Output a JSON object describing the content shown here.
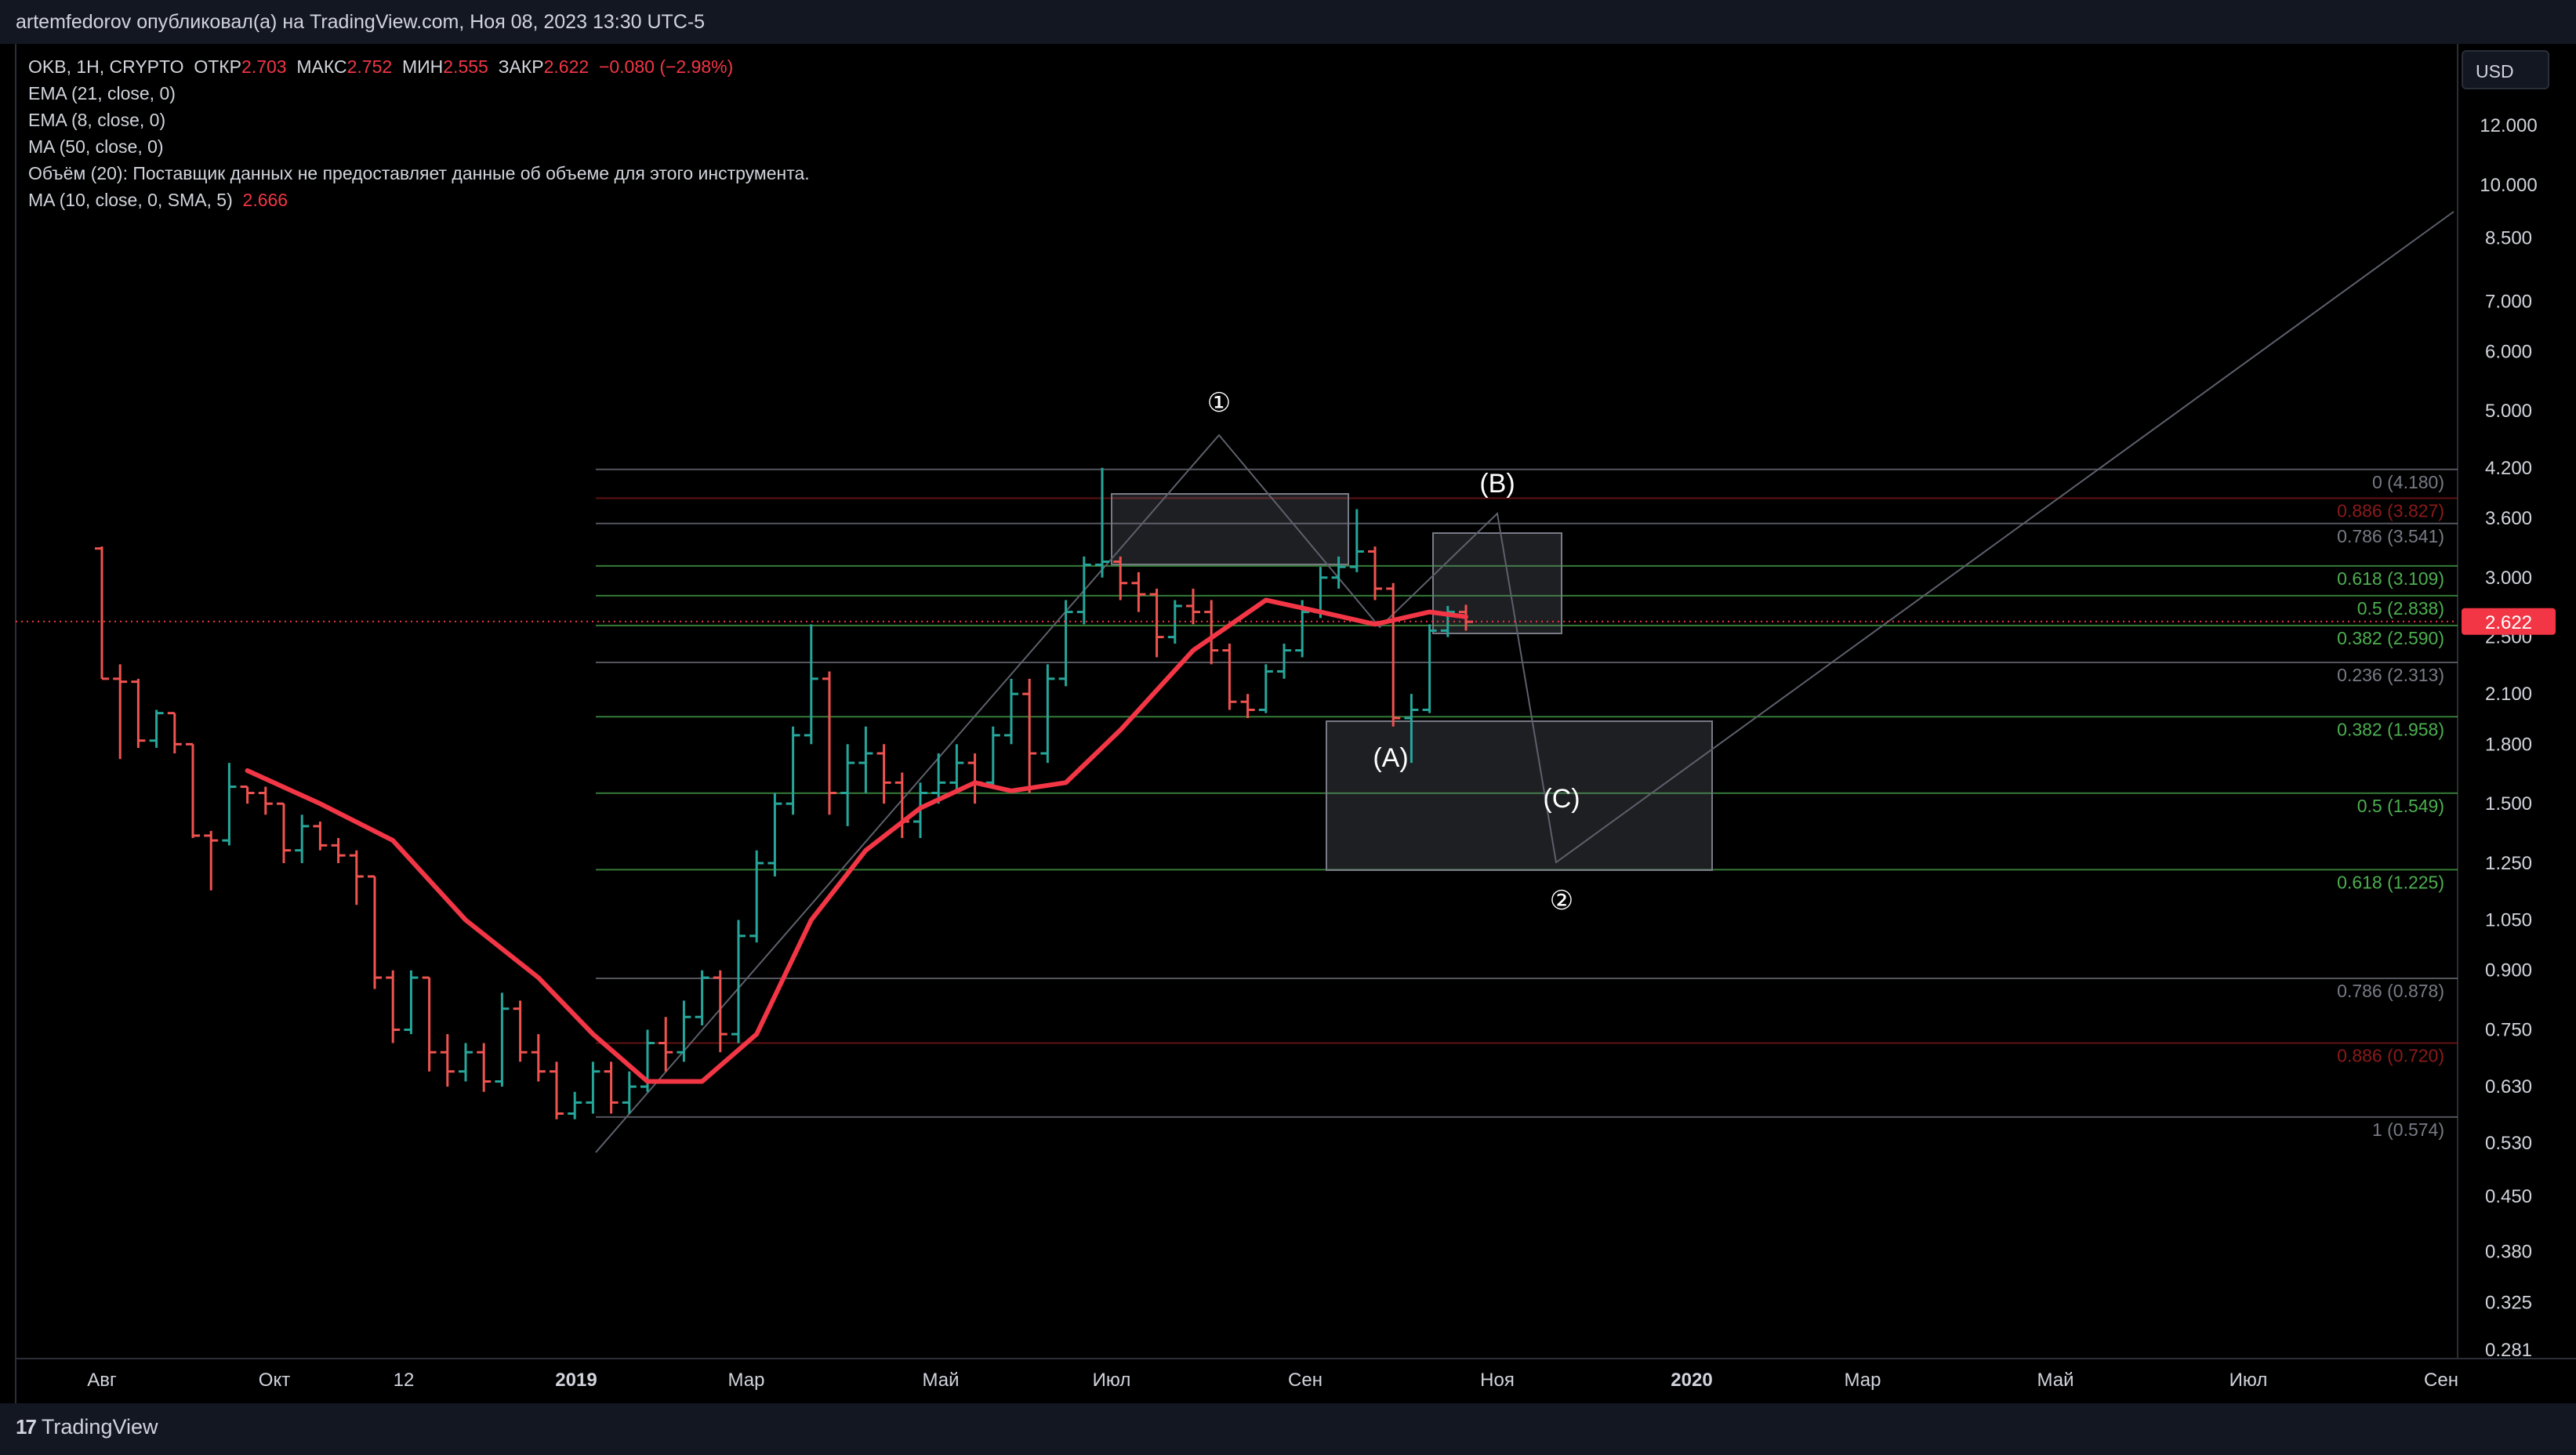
{
  "topbar": {
    "text": "artemfedorov опубликовал(а) на TradingView.com, Ноя 08, 2023 13:30 UTC-5"
  },
  "legend": {
    "symbol": "OKB, 1H, CRYPTO",
    "open_label": "ОТКР",
    "open": "2.703",
    "high_label": "МАКС",
    "high": "2.752",
    "low_label": "МИН",
    "low": "2.555",
    "close_label": "ЗАКР",
    "close": "2.622",
    "change": "−0.080 (−2.98%)",
    "ema21": "EMA (21, close, 0)",
    "ema8": "EMA (8, close, 0)",
    "ma50": "MA (50, close, 0)",
    "volume": "Объём (20): Поставщик данных не предоставляет данные об объеме для этого инструмента.",
    "ma10": "MA (10, close, 0, SMA, 5)",
    "ma10_value": "2.666"
  },
  "currency_button": "USD",
  "brand": "TradingView",
  "colors": {
    "up": "#26a69a",
    "down": "#ef5350",
    "ma": "#f23645",
    "fib_green": "#4caf50",
    "fib_gray": "#787b86",
    "fib_red": "#8b1a1a"
  },
  "chart_data": {
    "type": "bar",
    "ohlc_style": "ohlc-bars",
    "yscale": "log",
    "ylim": [
      0.281,
      12.0
    ],
    "price_ticks": [
      "12.000",
      "10.000",
      "8.500",
      "7.000",
      "6.000",
      "5.000",
      "4.200",
      "3.600",
      "3.000",
      "2.500",
      "2.100",
      "1.800",
      "1.500",
      "1.250",
      "1.050",
      "0.900",
      "0.750",
      "0.630",
      "0.530",
      "0.450",
      "0.380",
      "0.325",
      "0.281"
    ],
    "x_ticks": [
      "Авг",
      "Окт",
      "12",
      "2019",
      "Мар",
      "Май",
      "Июл",
      "Сен",
      "Ноя",
      "2020",
      "Мар",
      "Май",
      "Июл",
      "Сен"
    ],
    "last_price": "2.622",
    "bars": [
      [
        3.28,
        3.3,
        2.2,
        2.2
      ],
      [
        2.2,
        2.3,
        1.72,
        2.18
      ],
      [
        2.18,
        2.2,
        1.78,
        1.82
      ],
      [
        1.82,
        2.0,
        1.78,
        1.98
      ],
      [
        1.98,
        1.98,
        1.75,
        1.8
      ],
      [
        1.8,
        1.8,
        1.35,
        1.36
      ],
      [
        1.36,
        1.38,
        1.15,
        1.34
      ],
      [
        1.34,
        1.7,
        1.32,
        1.58
      ],
      [
        1.58,
        1.58,
        1.5,
        1.55
      ],
      [
        1.55,
        1.58,
        1.45,
        1.5
      ],
      [
        1.5,
        1.5,
        1.25,
        1.3
      ],
      [
        1.3,
        1.45,
        1.25,
        1.4
      ],
      [
        1.4,
        1.42,
        1.3,
        1.32
      ],
      [
        1.32,
        1.35,
        1.25,
        1.28
      ],
      [
        1.28,
        1.3,
        1.1,
        1.2
      ],
      [
        1.2,
        1.2,
        0.85,
        0.88
      ],
      [
        0.88,
        0.9,
        0.72,
        0.75
      ],
      [
        0.75,
        0.9,
        0.74,
        0.88
      ],
      [
        0.88,
        0.88,
        0.66,
        0.7
      ],
      [
        0.7,
        0.74,
        0.63,
        0.66
      ],
      [
        0.66,
        0.72,
        0.64,
        0.7
      ],
      [
        0.7,
        0.72,
        0.62,
        0.64
      ],
      [
        0.64,
        0.84,
        0.63,
        0.8
      ],
      [
        0.8,
        0.82,
        0.68,
        0.7
      ],
      [
        0.7,
        0.74,
        0.64,
        0.66
      ],
      [
        0.66,
        0.68,
        0.57,
        0.58
      ],
      [
        0.58,
        0.62,
        0.57,
        0.6
      ],
      [
        0.6,
        0.68,
        0.58,
        0.66
      ],
      [
        0.66,
        0.68,
        0.58,
        0.6
      ],
      [
        0.6,
        0.66,
        0.58,
        0.63
      ],
      [
        0.63,
        0.75,
        0.62,
        0.72
      ],
      [
        0.72,
        0.78,
        0.66,
        0.7
      ],
      [
        0.7,
        0.82,
        0.68,
        0.78
      ],
      [
        0.78,
        0.9,
        0.76,
        0.88
      ],
      [
        0.88,
        0.9,
        0.7,
        0.74
      ],
      [
        0.74,
        1.05,
        0.72,
        1.0
      ],
      [
        1.0,
        1.3,
        0.98,
        1.25
      ],
      [
        1.25,
        1.55,
        1.2,
        1.5
      ],
      [
        1.5,
        1.9,
        1.45,
        1.85
      ],
      [
        1.85,
        2.6,
        1.8,
        2.2
      ],
      [
        2.2,
        2.25,
        1.45,
        1.55
      ],
      [
        1.55,
        1.8,
        1.4,
        1.7
      ],
      [
        1.7,
        1.9,
        1.55,
        1.75
      ],
      [
        1.75,
        1.8,
        1.5,
        1.6
      ],
      [
        1.6,
        1.65,
        1.35,
        1.42
      ],
      [
        1.42,
        1.6,
        1.35,
        1.55
      ],
      [
        1.55,
        1.75,
        1.5,
        1.6
      ],
      [
        1.6,
        1.8,
        1.55,
        1.7
      ],
      [
        1.7,
        1.75,
        1.5,
        1.6
      ],
      [
        1.6,
        1.9,
        1.58,
        1.85
      ],
      [
        1.85,
        2.2,
        1.8,
        2.1
      ],
      [
        2.1,
        2.2,
        1.55,
        1.75
      ],
      [
        1.75,
        2.3,
        1.7,
        2.2
      ],
      [
        2.2,
        2.8,
        2.15,
        2.7
      ],
      [
        2.7,
        3.2,
        2.6,
        3.12
      ],
      [
        3.12,
        4.2,
        3.0,
        3.15
      ],
      [
        3.15,
        3.2,
        2.8,
        2.95
      ],
      [
        2.95,
        3.05,
        2.7,
        2.85
      ],
      [
        2.85,
        2.9,
        2.35,
        2.5
      ],
      [
        2.5,
        2.8,
        2.45,
        2.75
      ],
      [
        2.75,
        2.9,
        2.6,
        2.7
      ],
      [
        2.7,
        2.8,
        2.3,
        2.4
      ],
      [
        2.4,
        2.45,
        2.0,
        2.05
      ],
      [
        2.05,
        2.1,
        1.95,
        2.0
      ],
      [
        2.0,
        2.3,
        1.98,
        2.25
      ],
      [
        2.25,
        2.45,
        2.2,
        2.4
      ],
      [
        2.4,
        2.8,
        2.35,
        2.7
      ],
      [
        2.7,
        3.1,
        2.65,
        3.0
      ],
      [
        3.0,
        3.2,
        2.9,
        3.1
      ],
      [
        3.1,
        3.7,
        3.05,
        3.25
      ],
      [
        3.25,
        3.3,
        2.8,
        2.9
      ],
      [
        2.9,
        2.95,
        1.9,
        1.95
      ],
      [
        1.95,
        2.1,
        1.7,
        2.0
      ],
      [
        2.0,
        2.6,
        1.98,
        2.55
      ],
      [
        2.55,
        2.75,
        2.5,
        2.7
      ],
      [
        2.7,
        2.76,
        2.55,
        2.62
      ]
    ],
    "ma_line": [
      [
        8,
        1.66
      ],
      [
        12,
        1.5
      ],
      [
        16,
        1.34
      ],
      [
        20,
        1.05
      ],
      [
        24,
        0.88
      ],
      [
        27,
        0.74
      ],
      [
        30,
        0.64
      ],
      [
        33,
        0.64
      ],
      [
        36,
        0.74
      ],
      [
        39,
        1.05
      ],
      [
        42,
        1.3
      ],
      [
        45,
        1.48
      ],
      [
        48,
        1.6
      ],
      [
        50,
        1.56
      ],
      [
        53,
        1.6
      ],
      [
        56,
        1.88
      ],
      [
        60,
        2.4
      ],
      [
        64,
        2.8
      ],
      [
        67,
        2.7
      ],
      [
        70,
        2.6
      ],
      [
        73,
        2.7
      ],
      [
        75,
        2.66
      ]
    ],
    "fib_levels": [
      {
        "label": "0 (4.180)",
        "value": 4.18,
        "color": "gray"
      },
      {
        "label": "0.886 (3.827)",
        "value": 3.827,
        "color": "red"
      },
      {
        "label": "0.786 (3.541)",
        "value": 3.541,
        "color": "gray"
      },
      {
        "label": "0.618 (3.109)",
        "value": 3.109,
        "color": "green"
      },
      {
        "label": "0.5 (2.838)",
        "value": 2.838,
        "color": "green"
      },
      {
        "label": "0.382 (2.590)",
        "value": 2.59,
        "color": "green"
      },
      {
        "label": "0.236 (2.313)",
        "value": 2.313,
        "color": "gray"
      },
      {
        "label": "0.382 (1.958)",
        "value": 1.958,
        "color": "green"
      },
      {
        "label": "0.5 (1.549)",
        "value": 1.549,
        "color": "green"
      },
      {
        "label": "0.618 (1.225)",
        "value": 1.225,
        "color": "green"
      },
      {
        "label": "0.786 (0.878)",
        "value": 0.878,
        "color": "gray"
      },
      {
        "label": "0.886 (0.720)",
        "value": 0.72,
        "color": "red"
      },
      {
        "label": "1 (0.574)",
        "value": 0.574,
        "color": "gray"
      }
    ],
    "wave_labels": [
      "①",
      "(B)",
      "(A)",
      "(C)",
      "②"
    ]
  }
}
